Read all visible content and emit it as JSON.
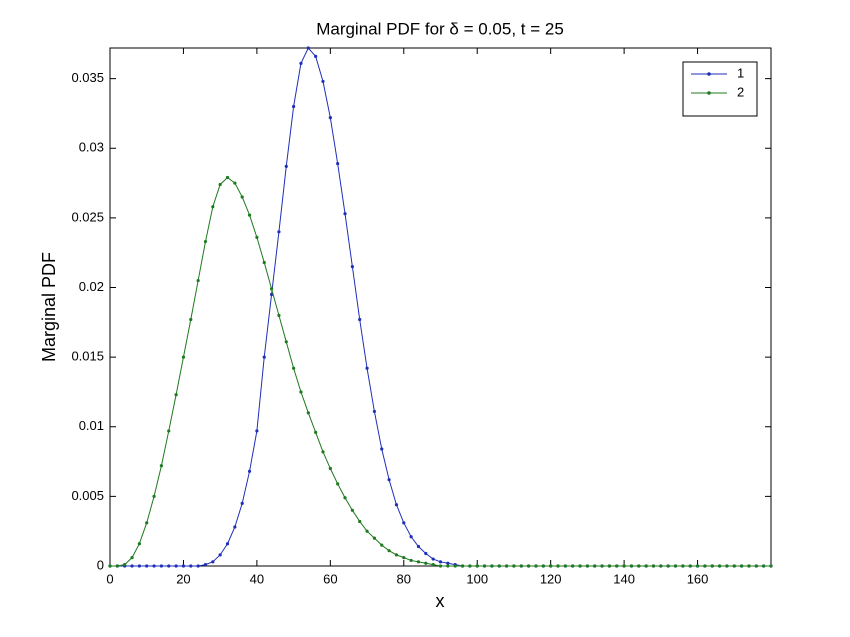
{
  "chart_data": {
    "type": "line",
    "title": "Marginal PDF for δ = 0.05, t = 25",
    "x_label": "x",
    "y_label": "Marginal PDF",
    "x": [
      0,
      2,
      4,
      6,
      8,
      10,
      12,
      14,
      16,
      18,
      20,
      22,
      24,
      26,
      28,
      30,
      32,
      34,
      36,
      38,
      40,
      42,
      44,
      46,
      48,
      50,
      52,
      54,
      56,
      58,
      60,
      62,
      64,
      66,
      68,
      70,
      72,
      74,
      76,
      78,
      80,
      82,
      84,
      86,
      88,
      90,
      92,
      94,
      96,
      98,
      100,
      102,
      104,
      106,
      108,
      110,
      112,
      114,
      116,
      118,
      120,
      122,
      124,
      126,
      128,
      130,
      132,
      134,
      136,
      138,
      140,
      142,
      144,
      146,
      148,
      150,
      152,
      154,
      156,
      158,
      160,
      162,
      164,
      166,
      168,
      170,
      172,
      174,
      176,
      178,
      180
    ],
    "series": [
      {
        "name": "1",
        "color": "#1f2fb8",
        "values": [
          0,
          0,
          0,
          0,
          0,
          0,
          0,
          0,
          0,
          0,
          0,
          0,
          0,
          0.0001,
          0.0003,
          0.0008,
          0.0016,
          0.0028,
          0.0045,
          0.0068,
          0.0097,
          0.015,
          0.0195,
          0.024,
          0.0287,
          0.033,
          0.0361,
          0.0372,
          0.0366,
          0.0348,
          0.0322,
          0.0289,
          0.0253,
          0.0215,
          0.0177,
          0.0142,
          0.0111,
          0.0084,
          0.0062,
          0.0044,
          0.0031,
          0.0021,
          0.0014,
          0.0009,
          0.0005,
          0.0003,
          0.0002,
          0.0001,
          0,
          0,
          0,
          0,
          0,
          0,
          0,
          0,
          0,
          0,
          0,
          0,
          0,
          0,
          0,
          0,
          0,
          0,
          0,
          0,
          0,
          0,
          0,
          0,
          0,
          0,
          0,
          0,
          0,
          0,
          0,
          0,
          0,
          0,
          0,
          0,
          0,
          0,
          0,
          0,
          0,
          0,
          0
        ]
      },
      {
        "name": "2",
        "color": "#1e7a1e",
        "values": [
          0,
          0,
          0.0001,
          0.0006,
          0.0016,
          0.0031,
          0.005,
          0.0072,
          0.0097,
          0.0123,
          0.015,
          0.0177,
          0.0205,
          0.0233,
          0.0258,
          0.0274,
          0.0279,
          0.0275,
          0.0265,
          0.0252,
          0.0236,
          0.0218,
          0.0199,
          0.018,
          0.0161,
          0.0142,
          0.0125,
          0.011,
          0.0096,
          0.0082,
          0.007,
          0.0059,
          0.0049,
          0.004,
          0.0032,
          0.0025,
          0.002,
          0.0015,
          0.0011,
          0.0008,
          0.0006,
          0.0004,
          0.0003,
          0.0002,
          0.0001,
          0,
          0,
          0,
          0,
          0,
          0,
          0,
          0,
          0,
          0,
          0,
          0,
          0,
          0,
          0,
          0,
          0,
          0,
          0,
          0,
          0,
          0,
          0,
          0,
          0,
          0,
          0,
          0,
          0,
          0,
          0,
          0,
          0,
          0,
          0,
          0,
          0,
          0,
          0,
          0,
          0,
          0,
          0,
          0,
          0,
          0
        ]
      }
    ],
    "xlim": [
      0,
      180
    ],
    "xticks": [
      0,
      20,
      40,
      60,
      80,
      100,
      120,
      140,
      160
    ],
    "ylim": [
      0,
      0.0372
    ],
    "yticks": [
      0,
      0.005,
      0.01,
      0.015,
      0.02,
      0.025,
      0.03,
      0.035
    ],
    "grid": false,
    "legend": "upper right"
  }
}
